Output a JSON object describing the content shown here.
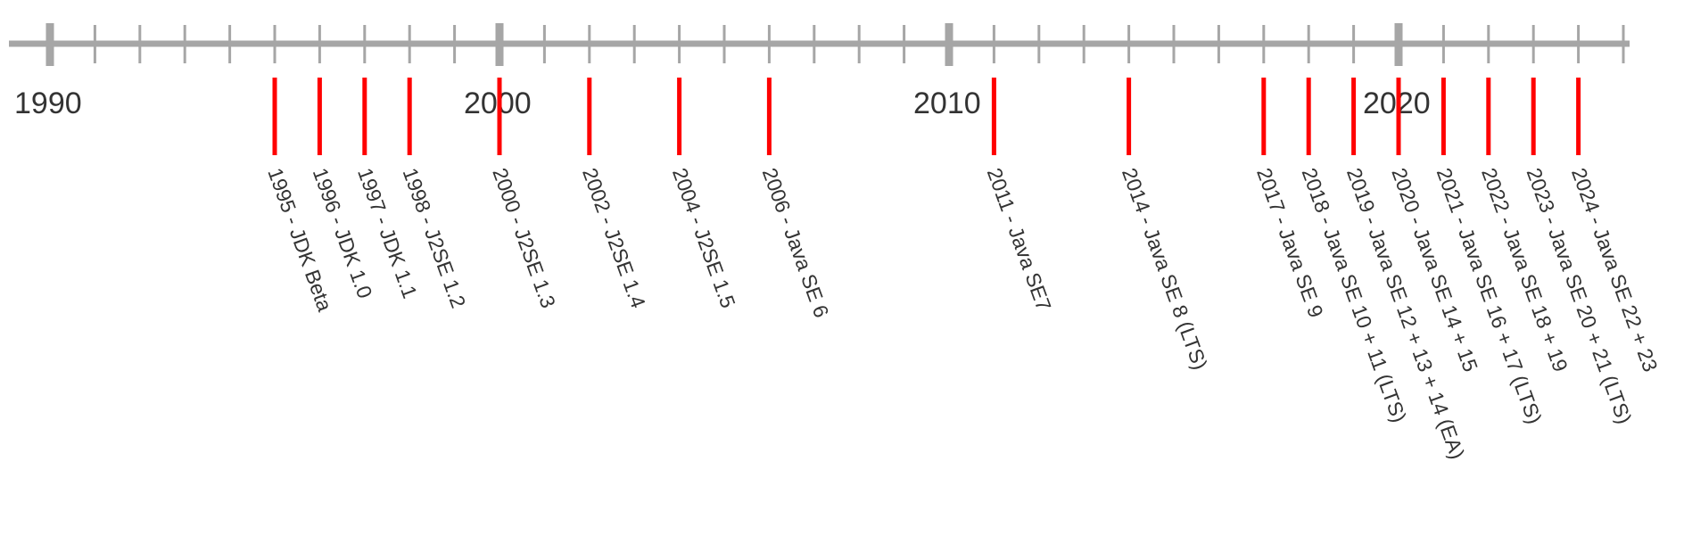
{
  "timeline": {
    "start_year": 1990,
    "end_year": 2025,
    "colors": {
      "axis": "#a6a6a6",
      "marker": "#ff0000",
      "text": "#333333",
      "background": "#ffffff"
    },
    "decades": [
      {
        "year": 1990,
        "label": "1990"
      },
      {
        "year": 2000,
        "label": "2000"
      },
      {
        "year": 2010,
        "label": "2010"
      },
      {
        "year": 2020,
        "label": "2020"
      }
    ],
    "events": [
      {
        "year": 1995,
        "label": "1995 - JDK Beta"
      },
      {
        "year": 1996,
        "label": "1996 - JDK 1.0"
      },
      {
        "year": 1997,
        "label": "1997 - JDK 1.1"
      },
      {
        "year": 1998,
        "label": "1998 - J2SE 1.2"
      },
      {
        "year": 2000,
        "label": "2000 - J2SE 1.3"
      },
      {
        "year": 2002,
        "label": "2002 - J2SE 1.4"
      },
      {
        "year": 2004,
        "label": "2004 - J2SE 1.5"
      },
      {
        "year": 2006,
        "label": "2006 - Java SE 6"
      },
      {
        "year": 2011,
        "label": "2011 - Java SE7"
      },
      {
        "year": 2014,
        "label": "2014 - Java SE 8 (LTS)"
      },
      {
        "year": 2017,
        "label": "2017 - Java SE 9"
      },
      {
        "year": 2018,
        "label": "2018 - Java SE 10 + 11 (LTS)"
      },
      {
        "year": 2019,
        "label": "2019 - Java SE 12 + 13 + 14 (EA)"
      },
      {
        "year": 2020,
        "label": "2020 - Java SE 14 + 15"
      },
      {
        "year": 2021,
        "label": "2021 - Java SE 16 + 17 (LTS)"
      },
      {
        "year": 2022,
        "label": "2022 - Java SE 18 + 19"
      },
      {
        "year": 2023,
        "label": "2023 - Java SE 20 + 21 (LTS)"
      },
      {
        "year": 2024,
        "label": "2024 - Java SE 22 + 23"
      }
    ]
  }
}
